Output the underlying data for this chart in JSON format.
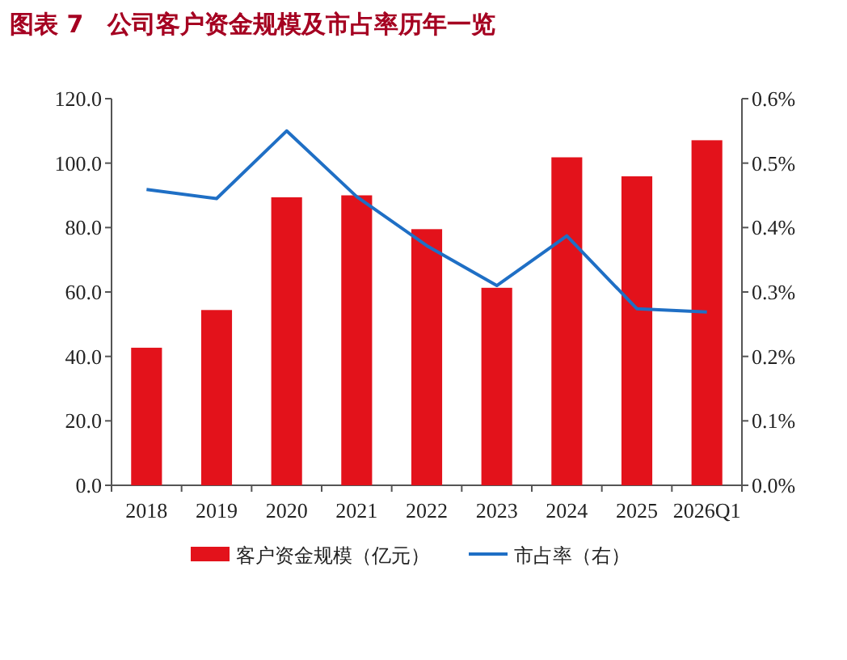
{
  "chart_data": {
    "type": "bar",
    "title": "图表 7　公司客户资金规模及市占率历年一览",
    "categories": [
      "2018",
      "2019",
      "2020",
      "2021",
      "2022",
      "2023",
      "2024",
      "2025",
      "2026Q1"
    ],
    "series": [
      {
        "name": "客户资金规模（亿元）",
        "color": "#e3121b",
        "values": [
          42.7,
          54.4,
          89.4,
          90.0,
          79.5,
          61.3,
          101.8,
          95.9,
          107.1
        ]
      },
      {
        "name": "市占率（右）",
        "type": "line",
        "axis": "y2",
        "color": "#1f6fc5",
        "values": [
          0.459,
          0.445,
          0.55,
          0.448,
          0.372,
          0.31,
          0.387,
          0.274,
          0.269
        ]
      }
    ],
    "ylim": [
      0,
      120
    ],
    "yticks": [
      {
        "value": 0,
        "label": "0.0"
      },
      {
        "value": 20,
        "label": "20.0"
      },
      {
        "value": 40,
        "label": "40.0"
      },
      {
        "value": 60,
        "label": "60.0"
      },
      {
        "value": 80,
        "label": "80.0"
      },
      {
        "value": 100,
        "label": "100.0"
      },
      {
        "value": 120,
        "label": "120.0"
      }
    ],
    "y2lim": [
      0,
      0.6
    ],
    "y2ticks": [
      {
        "value": 0,
        "label": "0.0%"
      },
      {
        "value": 0.1,
        "label": "0.1%"
      },
      {
        "value": 0.2,
        "label": "0.2%"
      },
      {
        "value": 0.3,
        "label": "0.3%"
      },
      {
        "value": 0.4,
        "label": "0.4%"
      },
      {
        "value": 0.5,
        "label": "0.5%"
      },
      {
        "value": 0.6,
        "label": "0.6%"
      }
    ],
    "grid": false,
    "legend": "bottom"
  }
}
